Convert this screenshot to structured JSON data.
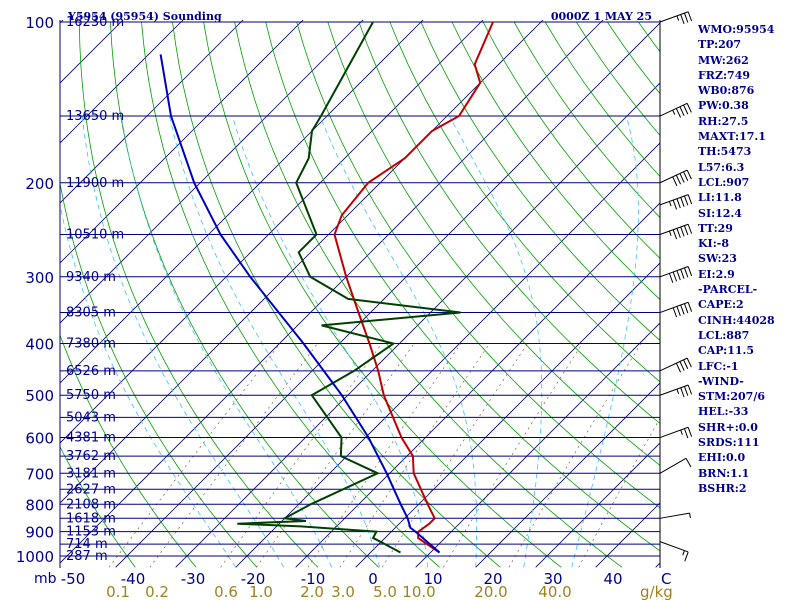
{
  "header": {
    "station": "Y5954 (95954) Sounding",
    "time": "0000Z  1 MAY 25"
  },
  "indices": [
    "WMO:95954",
    "TP:207",
    "MW:262",
    "FRZ:749",
    "WB0:876",
    "PW:0.38",
    "RH:27.5",
    "MAXT:17.1",
    "TH:5473",
    "L57:6.3",
    "LCL:907",
    "LI:11.8",
    "SI:12.4",
    "TT:29",
    "KI:-8",
    "SW:23",
    "EI:2.9",
    "-PARCEL-",
    "CAPE:2",
    "CINH:44028",
    "LCL:887",
    "CAP:11.5",
    "LFC:-1",
    "-WIND-",
    "STM:207/6",
    "HEL:-33",
    "SHR+:0.0",
    "SRDS:111",
    "EHI:0.0",
    "BRN:1.1",
    "BSHR:2"
  ],
  "colors": {
    "temperature": "#c00000",
    "dewpoint": "#004000",
    "parcel": "#0000c0",
    "isobar": "#000080",
    "text": "#00008b",
    "dry_adiabat": "#00a000",
    "moist_adiabat": "#40c0ff",
    "mixing_ratio": "#806040",
    "mixing_label": "#a08020"
  },
  "chart_data": {
    "type": "line",
    "title": "Y5954 (95954) Sounding",
    "time": "0000Z  1 MAY 25",
    "y_axis": {
      "units": "mb",
      "scale": "log",
      "range": [
        1000,
        100
      ],
      "ticks": [
        100,
        200,
        300,
        400,
        500,
        600,
        700,
        800,
        900,
        1000
      ]
    },
    "x_axis": {
      "units": "C",
      "ticks": [
        -50,
        -40,
        -30,
        -20,
        -10,
        0,
        10,
        20,
        30,
        40
      ]
    },
    "mixing_ratio_labels": [
      "0.1",
      "0.2",
      "0.6",
      "1.0",
      "2.0",
      "3.0",
      "5.0",
      "10.0",
      "20.0",
      "40.0"
    ],
    "mixing_ratio_unit": "g/kg",
    "height_labels": [
      {
        "p": 100,
        "label": "16230 m"
      },
      {
        "p": 150,
        "label": "13650 m"
      },
      {
        "p": 200,
        "label": "11900 m"
      },
      {
        "p": 250,
        "label": "10510 m"
      },
      {
        "p": 300,
        "label": "9340 m"
      },
      {
        "p": 350,
        "label": "8305 m"
      },
      {
        "p": 400,
        "label": "7380 m"
      },
      {
        "p": 450,
        "label": "6526 m"
      },
      {
        "p": 500,
        "label": "5750 m"
      },
      {
        "p": 550,
        "label": "5043 m"
      },
      {
        "p": 600,
        "label": "4381 m"
      },
      {
        "p": 650,
        "label": "3762 m"
      },
      {
        "p": 700,
        "label": "3181 m"
      },
      {
        "p": 750,
        "label": "2627 m"
      },
      {
        "p": 800,
        "label": "2108 m"
      },
      {
        "p": 850,
        "label": "1618 m"
      },
      {
        "p": 900,
        "label": "1153 m"
      },
      {
        "p": 950,
        "label": "714 m"
      },
      {
        "p": 1000,
        "label": "287 m"
      }
    ],
    "series": [
      {
        "name": "temperature",
        "points": [
          {
            "p": 985,
            "t": 11.5
          },
          {
            "p": 950,
            "t": 8
          },
          {
            "p": 925,
            "t": 5.5
          },
          {
            "p": 900,
            "t": 4.5
          },
          {
            "p": 870,
            "t": 5
          },
          {
            "p": 850,
            "t": 5
          },
          {
            "p": 800,
            "t": 1.5
          },
          {
            "p": 700,
            "t": -6
          },
          {
            "p": 650,
            "t": -9
          },
          {
            "p": 600,
            "t": -14
          },
          {
            "p": 500,
            "t": -24
          },
          {
            "p": 450,
            "t": -29
          },
          {
            "p": 400,
            "t": -35
          },
          {
            "p": 350,
            "t": -42
          },
          {
            "p": 300,
            "t": -50
          },
          {
            "p": 250,
            "t": -59
          },
          {
            "p": 230,
            "t": -61
          },
          {
            "p": 200,
            "t": -62
          },
          {
            "p": 180,
            "t": -60
          },
          {
            "p": 160,
            "t": -60
          },
          {
            "p": 150,
            "t": -58
          },
          {
            "p": 130,
            "t": -60
          },
          {
            "p": 120,
            "t": -64
          },
          {
            "p": 100,
            "t": -68
          }
        ]
      },
      {
        "name": "dewpoint",
        "points": [
          {
            "p": 985,
            "t": 5
          },
          {
            "p": 950,
            "t": 1
          },
          {
            "p": 925,
            "t": -2
          },
          {
            "p": 900,
            "t": -2.5
          },
          {
            "p": 880,
            "t": -16
          },
          {
            "p": 870,
            "t": -27
          },
          {
            "p": 860,
            "t": -16
          },
          {
            "p": 850,
            "t": -20
          },
          {
            "p": 800,
            "t": -18
          },
          {
            "p": 700,
            "t": -12
          },
          {
            "p": 650,
            "t": -21
          },
          {
            "p": 600,
            "t": -24
          },
          {
            "p": 500,
            "t": -36
          },
          {
            "p": 450,
            "t": -33
          },
          {
            "p": 400,
            "t": -31
          },
          {
            "p": 370,
            "t": -46
          },
          {
            "p": 350,
            "t": -25
          },
          {
            "p": 330,
            "t": -46
          },
          {
            "p": 300,
            "t": -56
          },
          {
            "p": 270,
            "t": -62
          },
          {
            "p": 250,
            "t": -62
          },
          {
            "p": 200,
            "t": -74
          },
          {
            "p": 180,
            "t": -76
          },
          {
            "p": 160,
            "t": -80
          },
          {
            "p": 150,
            "t": -81
          },
          {
            "p": 100,
            "t": -88
          }
        ]
      },
      {
        "name": "parcel",
        "points": [
          {
            "p": 985,
            "t": 11.5
          },
          {
            "p": 950,
            "t": 8.5
          },
          {
            "p": 900,
            "t": 4
          },
          {
            "p": 885,
            "t": 2.5
          },
          {
            "p": 850,
            "t": 0.5
          },
          {
            "p": 800,
            "t": -3
          },
          {
            "p": 700,
            "t": -10.5
          },
          {
            "p": 600,
            "t": -19.5
          },
          {
            "p": 500,
            "t": -31
          },
          {
            "p": 400,
            "t": -46
          },
          {
            "p": 300,
            "t": -66
          },
          {
            "p": 250,
            "t": -78
          },
          {
            "p": 200,
            "t": -91
          },
          {
            "p": 150,
            "t": -106
          },
          {
            "p": 115,
            "t": -118
          }
        ]
      }
    ],
    "wind_profile": [
      {
        "p": 940,
        "dir": 290,
        "spd": 15
      },
      {
        "p": 850,
        "dir": 260,
        "spd": 5
      },
      {
        "p": 700,
        "dir": 240,
        "spd": 10
      },
      {
        "p": 600,
        "dir": 250,
        "spd": 25
      },
      {
        "p": 500,
        "dir": 250,
        "spd": 35
      },
      {
        "p": 450,
        "dir": 245,
        "spd": 40
      },
      {
        "p": 350,
        "dir": 250,
        "spd": 50
      },
      {
        "p": 300,
        "dir": 250,
        "spd": 60
      },
      {
        "p": 250,
        "dir": 250,
        "spd": 55
      },
      {
        "p": 220,
        "dir": 250,
        "spd": 55
      },
      {
        "p": 200,
        "dir": 245,
        "spd": 50
      },
      {
        "p": 150,
        "dir": 245,
        "spd": 45
      },
      {
        "p": 100,
        "dir": 250,
        "spd": 35
      }
    ],
    "grid": true
  }
}
